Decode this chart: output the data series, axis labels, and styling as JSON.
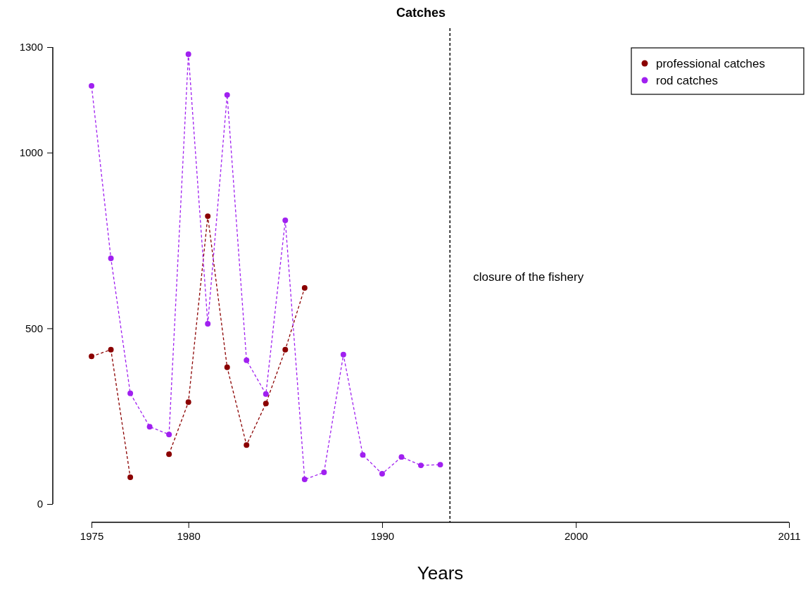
{
  "chart_data": {
    "type": "line",
    "title": "Catches",
    "xlabel": "Years",
    "x": [
      1975,
      1976,
      1977,
      1978,
      1979,
      1980,
      1981,
      1982,
      1983,
      1984,
      1985,
      1986,
      1987,
      1988,
      1989,
      1990,
      1991,
      1992,
      1993
    ],
    "series": [
      {
        "name": "professional catches",
        "color": "#8b0000",
        "values": [
          420,
          439,
          76,
          null,
          142,
          290,
          819,
          389,
          168,
          286,
          439,
          615,
          null,
          null,
          null,
          null,
          null,
          null,
          null
        ]
      },
      {
        "name": "rod catches",
        "color": "#a020f0",
        "values": [
          1190,
          699,
          315,
          220,
          198,
          1280,
          513,
          1164,
          409,
          313,
          807,
          70,
          90,
          425,
          140,
          86,
          134,
          110,
          112
        ]
      }
    ],
    "xlim": [
      1973,
      2011
    ],
    "xticks": [
      1975,
      1980,
      1990,
      2000,
      2011
    ],
    "ylim": [
      -52,
      1354
    ],
    "yticks": [
      0,
      500,
      1000,
      1300
    ],
    "ref_lines": [
      {
        "axis": "x",
        "value": 1993.5,
        "label": "closure of the fishery",
        "line_style": "dashed",
        "color": "#000000"
      }
    ],
    "legend": "top right",
    "marker": "circle",
    "line_style": "dashed",
    "grid": false
  }
}
